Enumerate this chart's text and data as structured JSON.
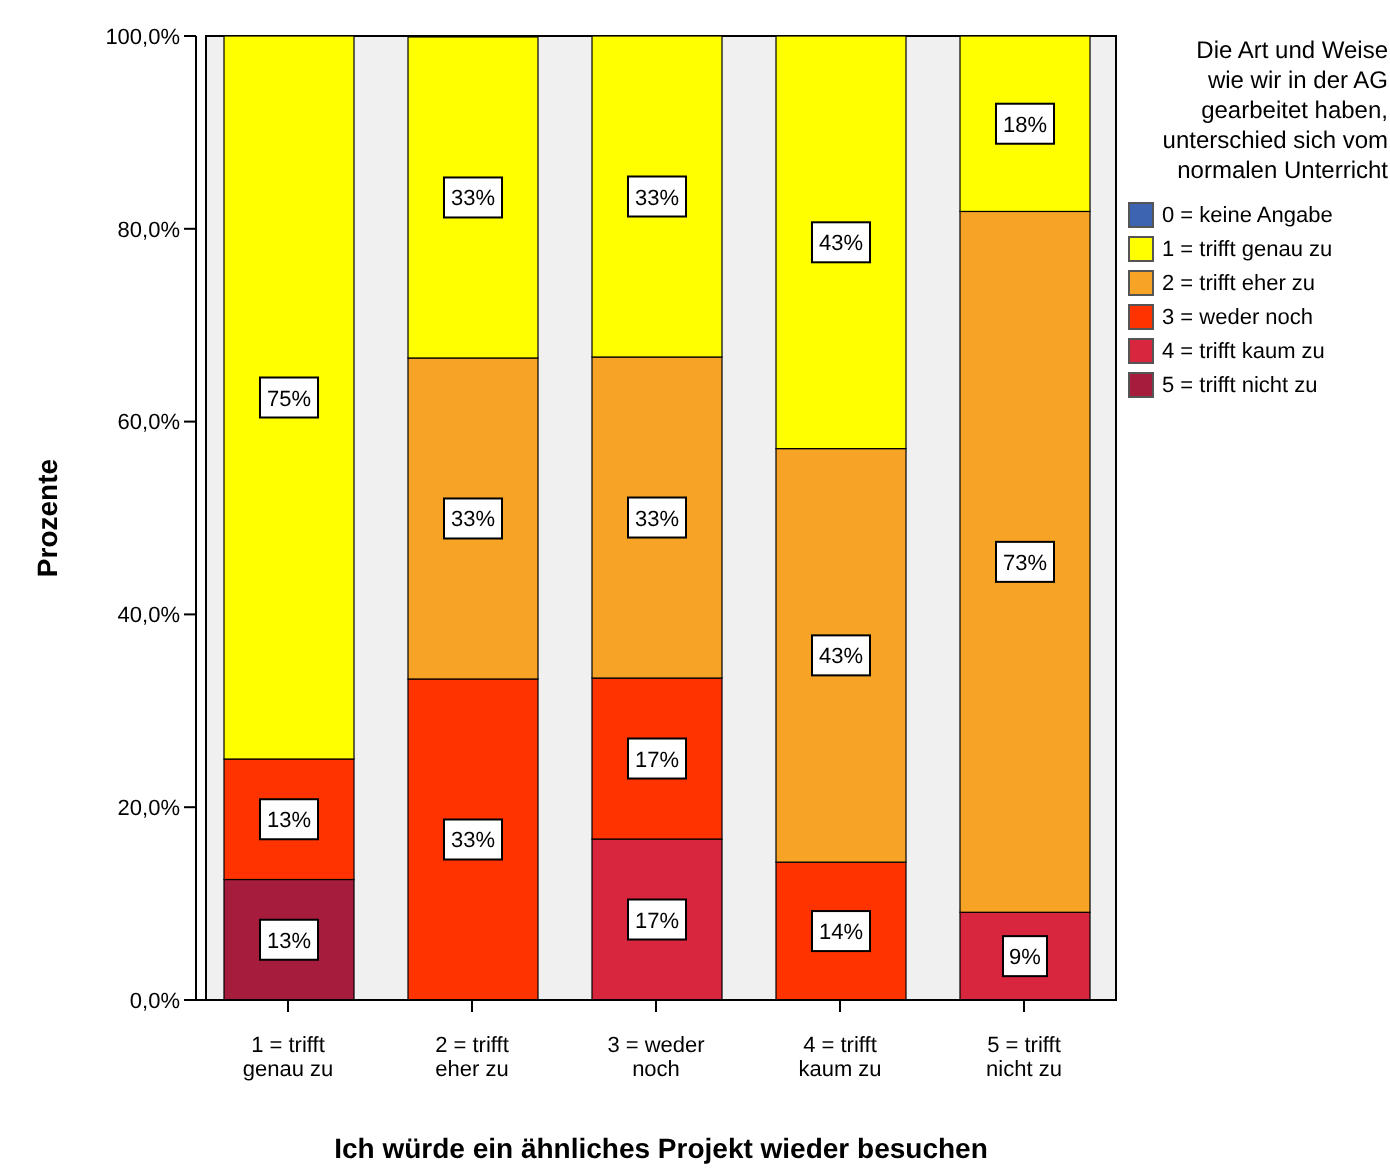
{
  "chart_data": {
    "type": "bar",
    "stacked": true,
    "xlabel": "Ich würde ein ähnliches Projekt wieder besuchen",
    "ylabel": "Prozente",
    "legend_title": "Die Art und Weise wie wir in der AG gearbeitet haben, unterschied sich vom normalen Unterricht",
    "categories": [
      "1 = trifft genau zu",
      "2 = trifft eher zu",
      "3 = weder noch",
      "4 = trifft kaum zu",
      "5 = trifft nicht zu"
    ],
    "ylim": [
      0,
      100
    ],
    "yticks": [
      {
        "value": 0,
        "label": "0,0%"
      },
      {
        "value": 20,
        "label": "20,0%"
      },
      {
        "value": 40,
        "label": "40,0%"
      },
      {
        "value": 60,
        "label": "60,0%"
      },
      {
        "value": 80,
        "label": "80,0%"
      },
      {
        "value": 100,
        "label": "100,0%"
      }
    ],
    "legend": "right",
    "grid": false,
    "series": [
      {
        "name": "5 = trifft nicht zu",
        "color": "#a51c3c",
        "values": [
          12.5,
          null,
          null,
          null,
          null
        ],
        "value_labels": [
          "13%",
          null,
          null,
          null,
          null
        ]
      },
      {
        "name": "4 = trifft kaum zu",
        "color": "#d8263e",
        "values": [
          null,
          null,
          16.7,
          null,
          9.1
        ],
        "value_labels": [
          null,
          null,
          "17%",
          null,
          "9%"
        ]
      },
      {
        "name": "3 = weder noch",
        "color": "#ff3300",
        "values": [
          12.5,
          33.3,
          16.7,
          14.3,
          null
        ],
        "value_labels": [
          "13%",
          "33%",
          "17%",
          "14%",
          null
        ]
      },
      {
        "name": "2 = trifft eher zu",
        "color": "#f7a325",
        "values": [
          null,
          33.3,
          33.3,
          42.9,
          72.7
        ],
        "value_labels": [
          null,
          "33%",
          "33%",
          "43%",
          "73%"
        ]
      },
      {
        "name": "1 = trifft genau zu",
        "color": "#ffff00",
        "values": [
          75,
          33.3,
          33.3,
          42.9,
          18.2
        ],
        "value_labels": [
          "75%",
          "33%",
          "33%",
          "43%",
          "18%"
        ]
      },
      {
        "name": "0 = keine Angabe",
        "color": "#3c64b1",
        "values": [
          null,
          null,
          null,
          null,
          null
        ],
        "value_labels": [
          null,
          null,
          null,
          null,
          null
        ]
      }
    ]
  }
}
